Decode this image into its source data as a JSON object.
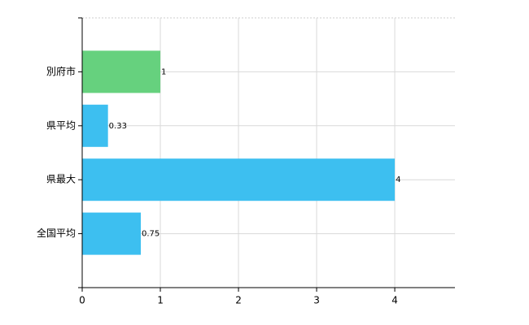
{
  "chart_data": {
    "type": "bar",
    "orientation": "horizontal",
    "categories": [
      "別府市",
      "県平均",
      "県最大",
      "全国平均"
    ],
    "values": [
      1,
      0.33,
      4,
      0.75
    ],
    "colors": [
      "#66d17e",
      "#3dbff0",
      "#3dbff0",
      "#3dbff0"
    ],
    "xlim": [
      0,
      4.77
    ],
    "xticks": [
      0,
      1,
      2,
      3,
      4
    ],
    "grid": true
  }
}
